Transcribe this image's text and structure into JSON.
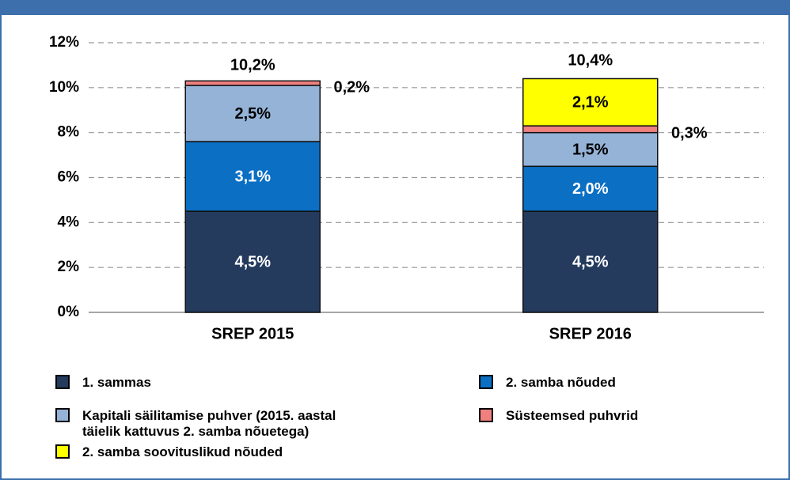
{
  "chart_data": {
    "type": "stacked_bar",
    "categories": [
      "SREP 2015",
      "SREP 2016"
    ],
    "series": [
      {
        "name": "1. sammas",
        "color": "#243b5e",
        "values": [
          4.5,
          4.5
        ],
        "value_labels": [
          "4,5%",
          "4,5%"
        ]
      },
      {
        "name": "2. samba nõuded",
        "color": "#0b6fc3",
        "values": [
          3.1,
          2.0
        ],
        "value_labels": [
          "3,1%",
          "2,0%"
        ]
      },
      {
        "name": "Kapitali säilitamise puhver (2015. aastal täielik kattuvus 2. samba nõuetega)",
        "color": "#95b3d7",
        "values": [
          2.5,
          1.5
        ],
        "value_labels": [
          "2,5%",
          "1,5%"
        ]
      },
      {
        "name": "Süsteemsed puhvrid",
        "color": "#f08080",
        "values": [
          0.2,
          0.3
        ],
        "value_labels": [
          "0,2%",
          "0,3%"
        ]
      },
      {
        "name": "2. samba soovituslikud nõuded",
        "color": "#ffff00",
        "values": [
          null,
          2.1
        ],
        "value_labels": [
          null,
          "2,1%"
        ]
      }
    ],
    "totals": [
      10.2,
      10.4
    ],
    "total_labels": [
      "10,2%",
      "10,4%"
    ],
    "ylim": [
      0,
      12
    ],
    "yticks": [
      {
        "value": 0,
        "label": "0%"
      },
      {
        "value": 2,
        "label": "2%"
      },
      {
        "value": 4,
        "label": "4%"
      },
      {
        "value": 6,
        "label": "6%"
      },
      {
        "value": 8,
        "label": "8%"
      },
      {
        "value": 10,
        "label": "10%"
      },
      {
        "value": 12,
        "label": "12%"
      }
    ],
    "grid": true
  }
}
